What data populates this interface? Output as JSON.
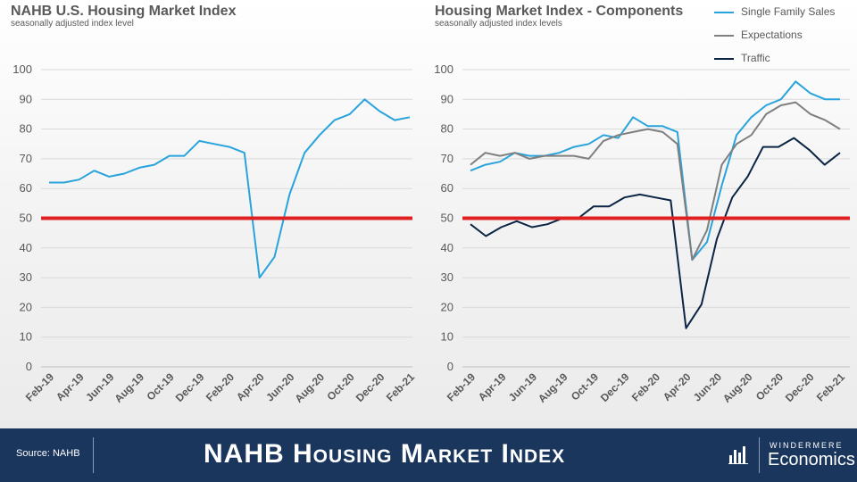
{
  "footer": {
    "source": "Source: NAHB",
    "title": "NAHB Housing Market Index",
    "logo_top": "WINDERMERE",
    "logo_bottom": "Economics"
  },
  "colors": {
    "single_family": "#29a3dc",
    "expectations": "#7f7f7f",
    "traffic": "#0b2545",
    "threshold": "#e02020",
    "grid": "#d9d9d9",
    "footer_bg": "#1b365d"
  },
  "chart_data": [
    {
      "type": "line",
      "title": "NAHB U.S. Housing Market Index",
      "subtitle": "seasonally adjusted index level",
      "x_tick_labels": [
        "Feb-19",
        "Apr-19",
        "Jun-19",
        "Aug-19",
        "Oct-19",
        "Dec-19",
        "Feb-20",
        "Apr-20",
        "Jun-20",
        "Aug-20",
        "Oct-20",
        "Dec-20",
        "Feb-21"
      ],
      "y_ticks": [
        0,
        10,
        20,
        30,
        40,
        50,
        60,
        70,
        80,
        90,
        100
      ],
      "ylim": [
        0,
        100
      ],
      "grid": true,
      "reference_line": 50,
      "series": [
        {
          "color": "#29a3dc",
          "values": [
            62,
            62,
            63,
            66,
            64,
            65,
            67,
            68,
            71,
            71,
            76,
            75,
            74,
            72,
            30,
            37,
            58,
            72,
            78,
            83,
            85,
            90,
            86,
            83,
            84
          ]
        }
      ]
    },
    {
      "type": "line",
      "title": "Housing Market Index - Components",
      "subtitle": "seasonally adjusted index levels",
      "x_tick_labels": [
        "Feb-19",
        "Apr-19",
        "Jun-19",
        "Aug-19",
        "Oct-19",
        "Dec-19",
        "Feb-20",
        "Apr-20",
        "Jun-20",
        "Aug-20",
        "Oct-20",
        "Dec-20",
        "Feb-21"
      ],
      "y_ticks": [
        0,
        10,
        20,
        30,
        40,
        50,
        60,
        70,
        80,
        90,
        100
      ],
      "ylim": [
        0,
        100
      ],
      "grid": true,
      "reference_line": 50,
      "legend_position": "top-right",
      "series": [
        {
          "name": "Single Family Sales",
          "color": "#29a3dc",
          "values": [
            66,
            68,
            69,
            72,
            71,
            71,
            72,
            74,
            75,
            78,
            77,
            84,
            81,
            81,
            79,
            36,
            42,
            61,
            78,
            84,
            88,
            90,
            96,
            92,
            90,
            90
          ]
        },
        {
          "name": "Expectations",
          "color": "#7f7f7f",
          "values": [
            68,
            72,
            71,
            72,
            70,
            71,
            71,
            71,
            70,
            76,
            78,
            79,
            80,
            79,
            75,
            36,
            46,
            68,
            75,
            78,
            85,
            88,
            89,
            85,
            83,
            80
          ]
        },
        {
          "name": "Traffic",
          "color": "#0b2545",
          "values": [
            48,
            44,
            47,
            49,
            47,
            48,
            50,
            50,
            54,
            54,
            57,
            58,
            57,
            56,
            13,
            21,
            43,
            57,
            64,
            74,
            74,
            77,
            73,
            68,
            72
          ]
        }
      ]
    }
  ]
}
